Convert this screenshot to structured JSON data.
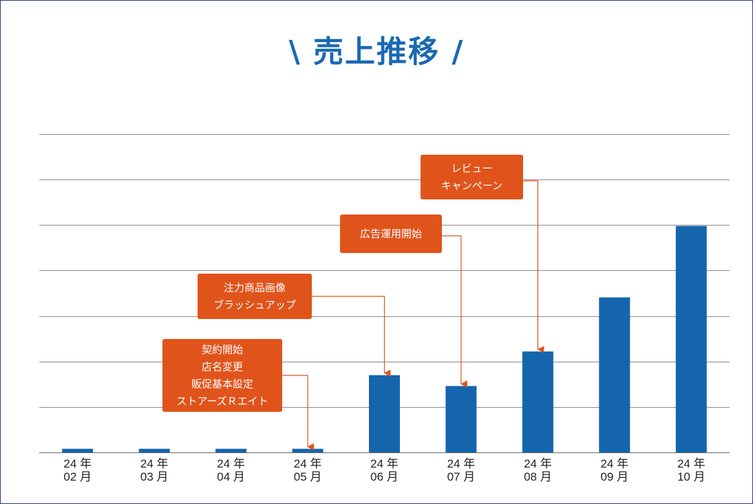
{
  "chart_data": {
    "type": "bar",
    "title": "\\ 売上推移 /",
    "categories": [
      [
        "24 年",
        "02 月"
      ],
      [
        "24 年",
        "03 月"
      ],
      [
        "24 年",
        "04 月"
      ],
      [
        "24 年",
        "05 月"
      ],
      [
        "24 年",
        "06 月"
      ],
      [
        "24 年",
        "07 月"
      ],
      [
        "24 年",
        "08 月"
      ],
      [
        "24 年",
        "09 月"
      ],
      [
        "24 年",
        "10 月"
      ]
    ],
    "values": [
      0.08,
      0.08,
      0.08,
      0.08,
      1.7,
      1.46,
      2.22,
      3.41,
      4.98
    ],
    "ylim": [
      0,
      7
    ],
    "gridlines": 7,
    "grid": true,
    "bar_color": "#1565ad",
    "annotations": [
      {
        "category_index": 3,
        "lines": [
          "契約開始",
          "店名変更",
          "販促基本設定",
          "ストアーズＲエイト"
        ]
      },
      {
        "category_index": 4,
        "lines": [
          "注力商品画像",
          "ブラッシュアップ"
        ]
      },
      {
        "category_index": 5,
        "lines": [
          "広告運用開始"
        ]
      },
      {
        "category_index": 6,
        "lines": [
          "レビュー",
          "キャンペーン"
        ]
      }
    ],
    "annotation_color": "#e0541c"
  }
}
